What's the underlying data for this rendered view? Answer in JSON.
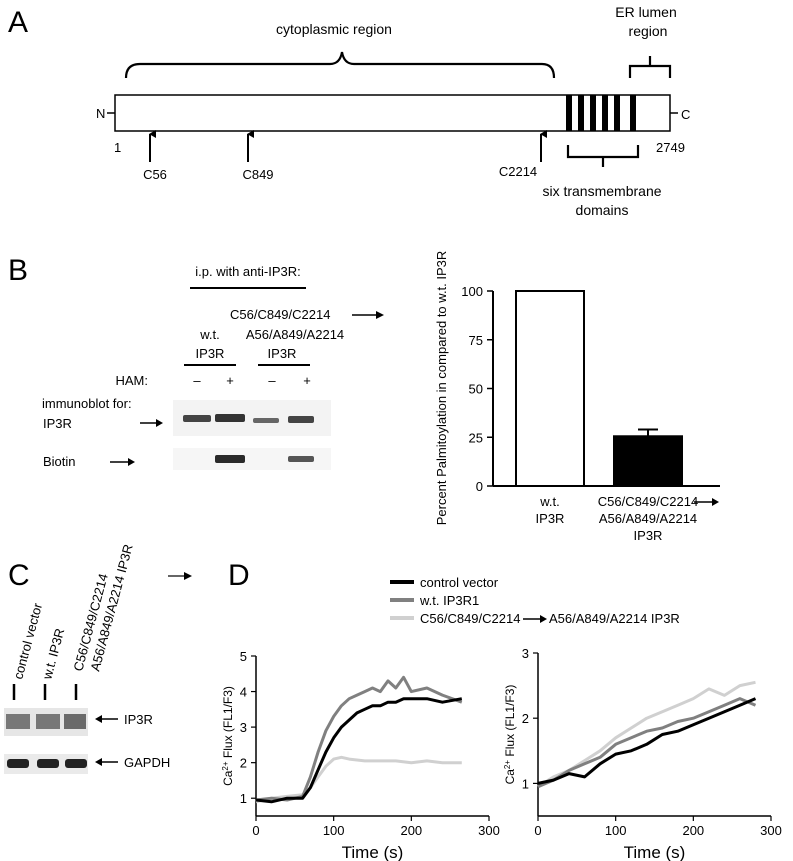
{
  "panelA": {
    "letter": "A",
    "cyto_label": "cytoplasmic region",
    "er_label_1": "ER lumen",
    "er_label_2": "region",
    "n_term": "N",
    "c_term": "C",
    "start_num": "1",
    "end_num": "2749",
    "sites": [
      "C56",
      "C849",
      "C2214"
    ],
    "tm_label_1": "six transmembrane",
    "tm_label_2": "domains"
  },
  "panelB": {
    "letter": "B",
    "ip_label": "i.p. with anti-IP3R:",
    "mutant_label_1": "C56/C849/C2214",
    "mutant_label_2": "A56/A849/A2214",
    "mutant_label_3": "IP3R",
    "wt_label_1": "w.t.",
    "wt_label_2": "IP3R",
    "ham_label": "HAM:",
    "minus": "–",
    "plus": "+",
    "immunoblot_label": "immunoblot for:",
    "blot1_label": "IP3R",
    "blot2_label": "Biotin"
  },
  "panelC": {
    "letter": "C",
    "lanes": [
      "control vector",
      "w.t. IP3R"
    ],
    "mutant_lane_1": "C56/C849/C2214",
    "mutant_lane_2": "A56/A849/A2214 IP3R",
    "blot1_label": "IP3R",
    "blot2_label": "GAPDH"
  },
  "panelD": {
    "letter": "D",
    "legend": {
      "control": "control vector",
      "wt": "w.t. IP3R1",
      "mutant_pre": "C56/C849/C2214",
      "mutant_post": "A56/A849/A2214 IP3R"
    },
    "ylabel_pre": "Ca",
    "ylabel_sup": "2+",
    "ylabel_post": " Flux (FL1/F3)",
    "xlabel": "Time (s)",
    "colors": {
      "control": "#000000",
      "wt": "#808080",
      "mutant": "#d0d0d0"
    }
  },
  "chart_data": [
    {
      "type": "bar",
      "ylabel": "Percent Palmitoylation in compared to w.t. IP3R",
      "categories": [
        [
          "w.t.",
          "IP3R"
        ],
        [
          "C56/C849/C2214",
          "A56/A849/A2214",
          "IP3R"
        ]
      ],
      "values": [
        100,
        25.5
      ],
      "error": [
        0,
        3.5
      ],
      "ylim": [
        0,
        100
      ],
      "yticks": [
        0,
        25,
        50,
        75,
        100
      ],
      "fills": [
        "#ffffff",
        "#000000"
      ]
    },
    {
      "type": "line",
      "xlabel": "Time (s)",
      "xlim": [
        0,
        300
      ],
      "ylim": [
        0.5,
        5
      ],
      "xticks": [
        0,
        100,
        200,
        300
      ],
      "yticks": [
        1,
        2,
        3,
        4,
        5
      ],
      "series": [
        {
          "name": "control vector",
          "x": [
            0,
            20,
            40,
            60,
            70,
            80,
            90,
            100,
            110,
            120,
            130,
            140,
            150,
            160,
            170,
            180,
            190,
            200,
            220,
            240,
            265
          ],
          "y": [
            0.95,
            0.9,
            1.0,
            1.0,
            1.3,
            1.8,
            2.3,
            2.7,
            3.0,
            3.2,
            3.4,
            3.5,
            3.6,
            3.6,
            3.7,
            3.7,
            3.8,
            3.8,
            3.8,
            3.7,
            3.8
          ]
        },
        {
          "name": "w.t. IP3R1",
          "x": [
            0,
            20,
            40,
            60,
            70,
            80,
            90,
            100,
            110,
            120,
            130,
            140,
            150,
            160,
            170,
            180,
            190,
            200,
            220,
            240,
            265
          ],
          "y": [
            0.95,
            1.0,
            0.95,
            1.05,
            1.6,
            2.3,
            2.9,
            3.3,
            3.6,
            3.8,
            3.9,
            4.0,
            4.1,
            4.0,
            4.3,
            4.1,
            4.4,
            4.0,
            4.1,
            3.9,
            3.7
          ]
        },
        {
          "name": "C56/C849/C2214 → A56/A849/A2214 IP3R",
          "x": [
            0,
            20,
            40,
            60,
            70,
            80,
            90,
            100,
            110,
            120,
            140,
            160,
            180,
            200,
            220,
            240,
            265
          ],
          "y": [
            0.9,
            1.0,
            1.05,
            1.1,
            1.3,
            1.6,
            1.9,
            2.1,
            2.15,
            2.1,
            2.05,
            2.05,
            2.05,
            2.0,
            2.05,
            2.0,
            2.0
          ]
        }
      ]
    },
    {
      "type": "line",
      "xlabel": "Time (s)",
      "xlim": [
        0,
        300
      ],
      "ylim": [
        0.5,
        3
      ],
      "xticks": [
        0,
        100,
        200,
        300
      ],
      "yticks": [
        1,
        2,
        3
      ],
      "series": [
        {
          "name": "control vector",
          "x": [
            0,
            20,
            40,
            60,
            80,
            100,
            120,
            140,
            160,
            180,
            200,
            220,
            240,
            260,
            280
          ],
          "y": [
            1.0,
            1.05,
            1.15,
            1.1,
            1.3,
            1.45,
            1.5,
            1.6,
            1.75,
            1.8,
            1.9,
            2.0,
            2.1,
            2.2,
            2.3
          ]
        },
        {
          "name": "w.t. IP3R1",
          "x": [
            0,
            20,
            40,
            60,
            80,
            100,
            120,
            140,
            160,
            180,
            200,
            220,
            240,
            260,
            280
          ],
          "y": [
            0.95,
            1.05,
            1.2,
            1.3,
            1.4,
            1.6,
            1.7,
            1.8,
            1.85,
            1.95,
            2.0,
            2.1,
            2.2,
            2.3,
            2.2
          ]
        },
        {
          "name": "C56/C849/C2214 → A56/A849/A2214 IP3R",
          "x": [
            0,
            20,
            40,
            60,
            80,
            100,
            120,
            140,
            160,
            180,
            200,
            220,
            240,
            260,
            280
          ],
          "y": [
            0.95,
            1.1,
            1.2,
            1.35,
            1.5,
            1.7,
            1.85,
            2.0,
            2.1,
            2.2,
            2.3,
            2.45,
            2.35,
            2.5,
            2.55
          ]
        }
      ]
    }
  ]
}
